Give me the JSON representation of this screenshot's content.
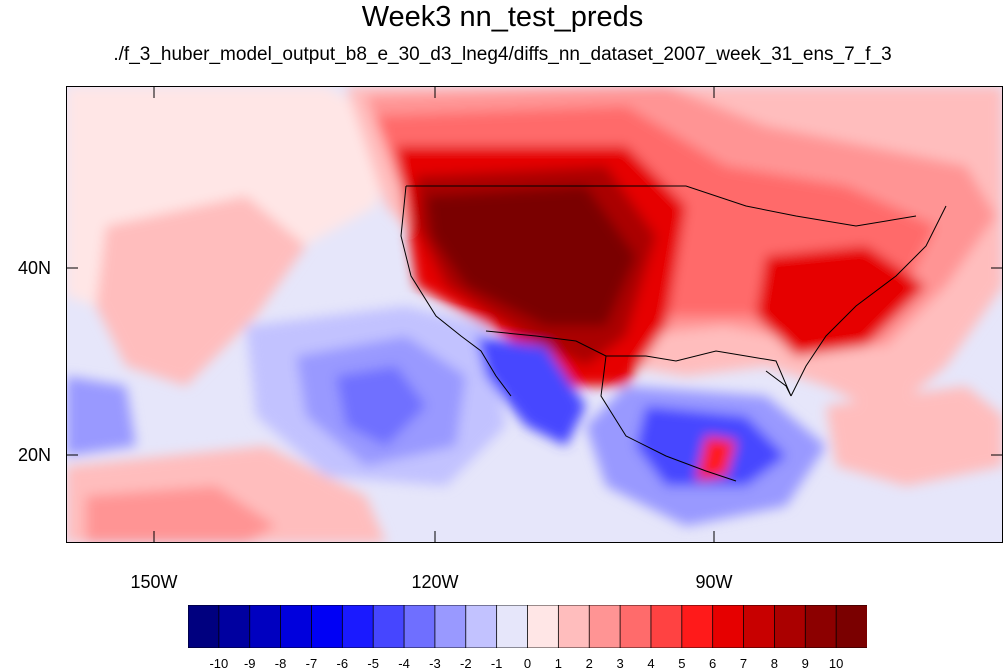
{
  "title": "Week3 nn_test_preds",
  "subtitle": "./f_3_huber_model_output_b8_e_30_d3_lneg4/diffs_nn_dataset_2007_week_31_ens_7_f_3",
  "map": {
    "lat_labels": [
      "40N",
      "20N"
    ],
    "lon_labels": [
      "150W",
      "120W",
      "90W"
    ]
  },
  "colorbar": {
    "labels": [
      "-10",
      "-9",
      "-8",
      "-7",
      "-6",
      "-5",
      "-4",
      "-3",
      "-2",
      "-1",
      "0",
      "1",
      "2",
      "3",
      "4",
      "5",
      "6",
      "7",
      "8",
      "9",
      "10"
    ],
    "colors": [
      "#00007f",
      "#0000a0",
      "#0000c0",
      "#0000dd",
      "#0000f5",
      "#1a1aff",
      "#4646ff",
      "#6f6fff",
      "#9999ff",
      "#c2c2ff",
      "#e6e6fa",
      "#ffe6e6",
      "#ffbdbd",
      "#ff9494",
      "#ff6b6b",
      "#ff4242",
      "#ff1a1a",
      "#e60000",
      "#c80000",
      "#aa0000",
      "#8c0000",
      "#7a0000"
    ]
  }
}
